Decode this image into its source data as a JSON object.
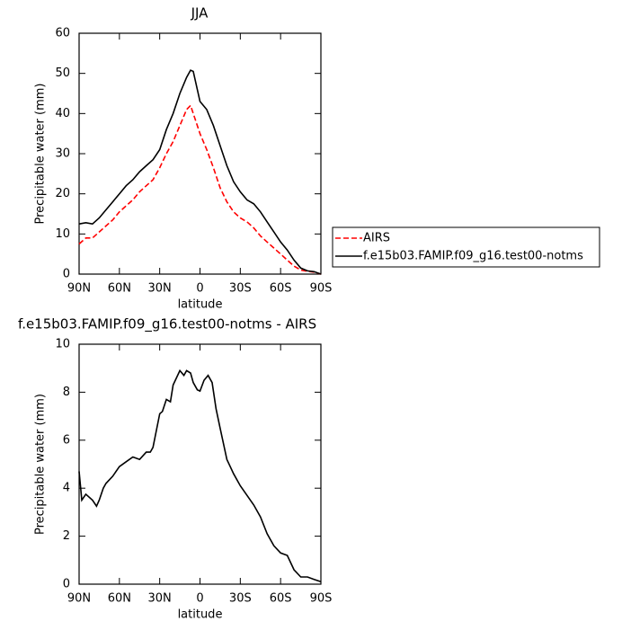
{
  "chart_data": [
    {
      "type": "line",
      "title": "JJA",
      "x_label": "latitude",
      "y_label": "Precipitable water (mm)",
      "x": [
        90,
        85,
        80,
        75,
        70,
        65,
        60,
        55,
        50,
        45,
        40,
        35,
        30,
        25,
        20,
        15,
        10,
        7,
        5,
        0,
        -5,
        -10,
        -15,
        -20,
        -25,
        -30,
        -35,
        -40,
        -45,
        -50,
        -55,
        -60,
        -65,
        -70,
        -75,
        -80,
        -85,
        -90
      ],
      "series": [
        {
          "name": "AIRS",
          "color": "#ff0000",
          "line_style": "dashed",
          "values": [
            7.5,
            9,
            9,
            10.5,
            12,
            13.5,
            15.5,
            17,
            18.5,
            20.5,
            22,
            23.5,
            26.5,
            30,
            33,
            37,
            41,
            42,
            40,
            35,
            31,
            26.5,
            21.5,
            18,
            15.5,
            14,
            13,
            11.5,
            9.5,
            8,
            6.5,
            5,
            3.5,
            2,
            1,
            0.7,
            0.5,
            0
          ]
        },
        {
          "name": "f.e15b03.FAMIP.f09_g16.test00-notms",
          "color": "#000000",
          "line_style": "solid",
          "values": [
            12.5,
            12.8,
            12.5,
            14,
            16,
            18,
            20,
            22,
            23.5,
            25.5,
            27,
            28.5,
            31,
            36,
            40,
            45,
            49,
            50.8,
            50.5,
            43,
            41,
            37,
            32,
            27,
            23,
            20.5,
            18.5,
            17.5,
            15.5,
            13,
            10.5,
            8,
            6,
            3.5,
            1.5,
            0.8,
            0.6,
            0
          ]
        }
      ],
      "xlim": [
        90,
        -90
      ],
      "xticks": [
        {
          "value": 90,
          "label": "90N"
        },
        {
          "value": 60,
          "label": "60N"
        },
        {
          "value": 30,
          "label": "30N"
        },
        0,
        {
          "value": -30,
          "label": "30S"
        },
        {
          "value": -60,
          "label": "60S"
        },
        {
          "value": -90,
          "label": "90S"
        }
      ],
      "ylim": [
        0,
        60
      ],
      "yticks": [
        0,
        10,
        20,
        30,
        40,
        50,
        60
      ],
      "legend": "right"
    },
    {
      "type": "line",
      "title": "f.e15b03.FAMIP.f09_g16.test00-notms - AIRS",
      "x_label": "latitude",
      "y_label": "Precipitable water (mm)",
      "x": [
        90,
        88,
        85,
        80,
        77,
        75,
        72,
        70,
        65,
        60,
        55,
        50,
        45,
        40,
        37,
        35,
        30,
        28,
        25,
        22,
        20,
        15,
        12,
        10,
        7,
        5,
        2,
        0,
        -3,
        -6,
        -9,
        -12,
        -15,
        -20,
        -25,
        -30,
        -35,
        -40,
        -45,
        -50,
        -55,
        -60,
        -65,
        -70,
        -75,
        -80,
        -85,
        -90
      ],
      "series": [
        {
          "color": "#000000",
          "line_style": "solid",
          "values": [
            4.7,
            3.5,
            3.75,
            3.5,
            3.25,
            3.5,
            4,
            4.2,
            4.5,
            4.9,
            5.1,
            5.3,
            5.2,
            5.5,
            5.5,
            5.7,
            7.1,
            7.2,
            7.7,
            7.6,
            8.3,
            8.9,
            8.7,
            8.9,
            8.8,
            8.4,
            8.1,
            8.05,
            8.5,
            8.7,
            8.4,
            7.3,
            6.5,
            5.2,
            4.6,
            4.1,
            3.7,
            3.3,
            2.8,
            2.1,
            1.6,
            1.3,
            1.2,
            0.6,
            0.3,
            0.3,
            0.2,
            0.1
          ]
        }
      ],
      "xlim": [
        90,
        -90
      ],
      "xticks": [
        {
          "value": 90,
          "label": "90N"
        },
        {
          "value": 60,
          "label": "60N"
        },
        {
          "value": 30,
          "label": "30N"
        },
        0,
        {
          "value": -30,
          "label": "30S"
        },
        {
          "value": -60,
          "label": "60S"
        },
        {
          "value": -90,
          "label": "90S"
        }
      ],
      "ylim": [
        0,
        10
      ],
      "yticks": [
        0,
        2,
        4,
        6,
        8,
        10
      ]
    }
  ]
}
